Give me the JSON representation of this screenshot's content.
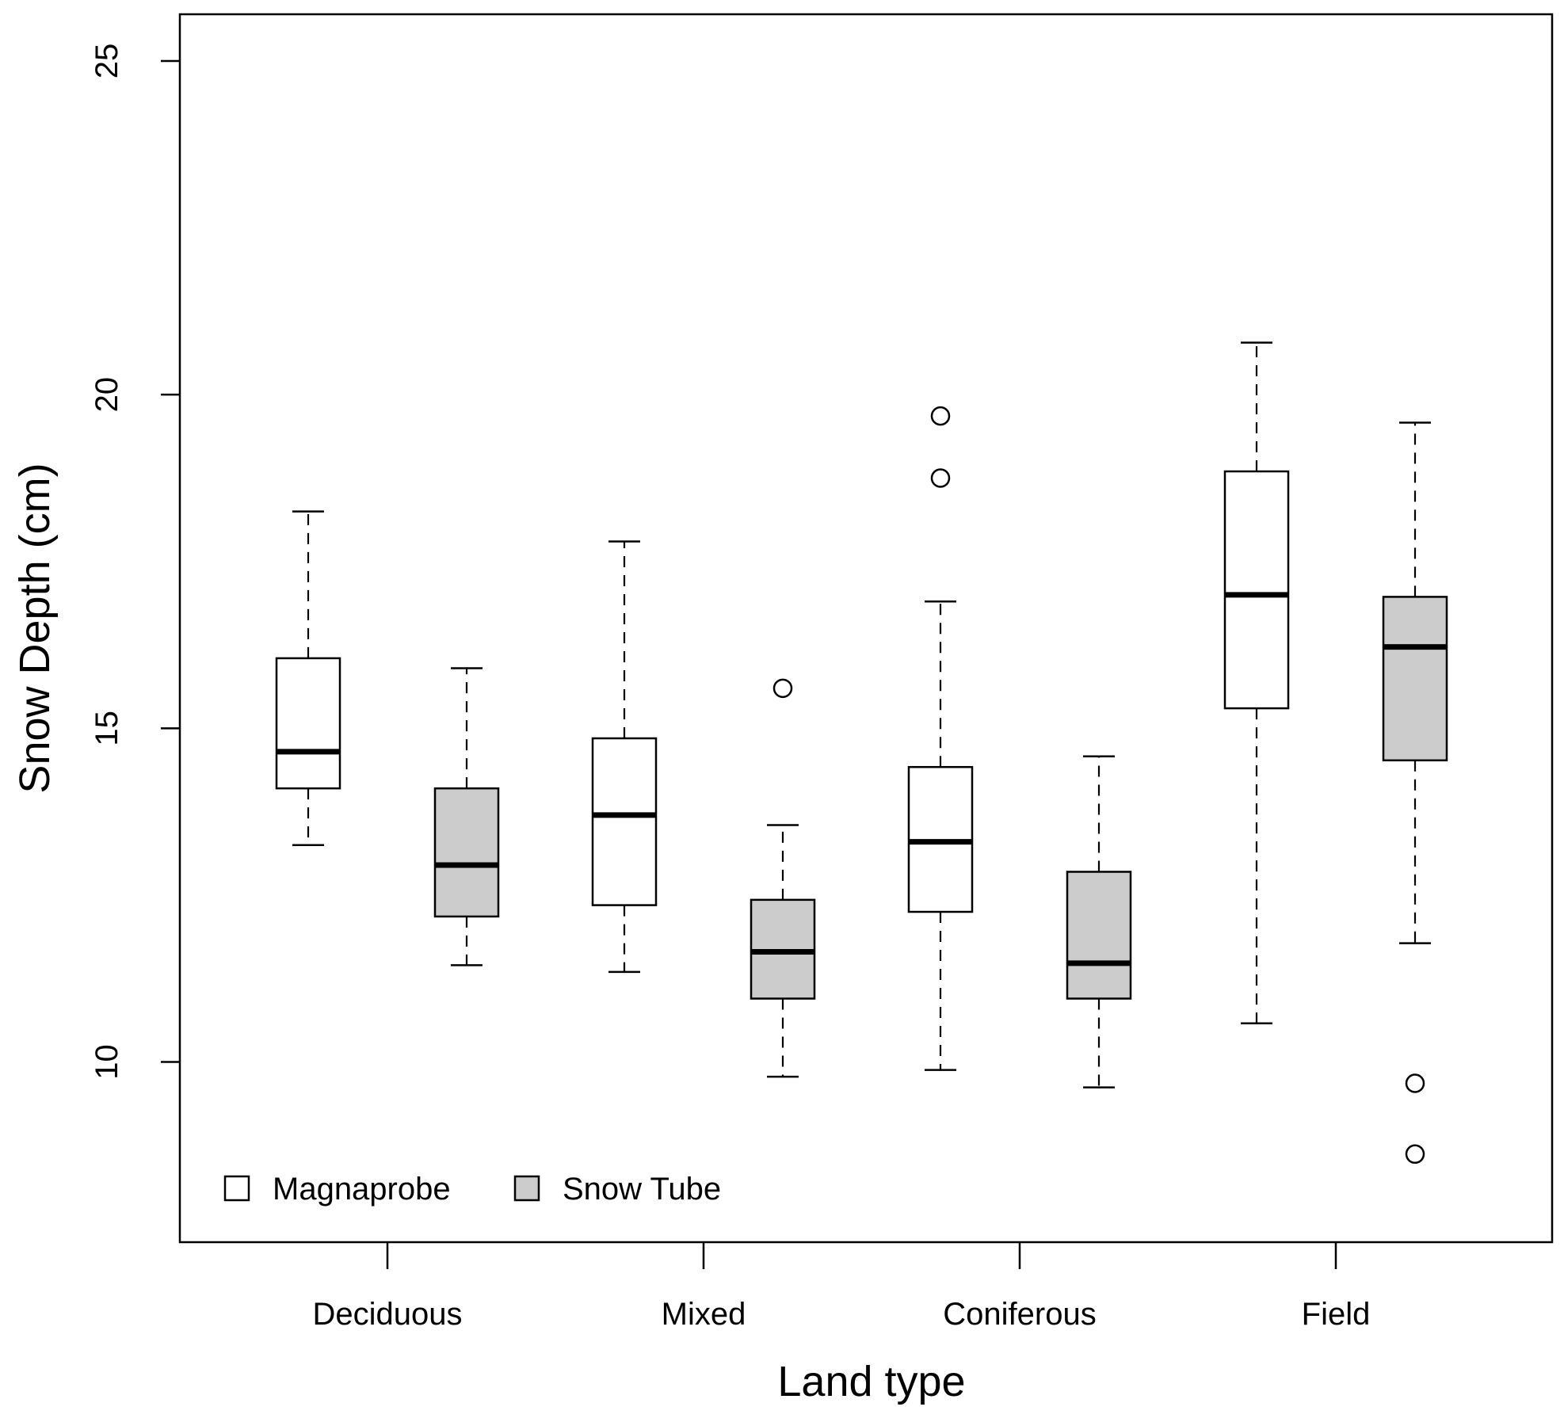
{
  "chart_data": {
    "type": "boxplot",
    "xlabel": "Land type",
    "ylabel": "Snow Depth (cm)",
    "ylim": [
      7.3,
      25.7
    ],
    "yticks": [
      10,
      15,
      20,
      25
    ],
    "grid": false,
    "legend_position": "bottom-left",
    "categories": [
      "Deciduous",
      "Mixed",
      "Coniferous",
      "Field"
    ],
    "series": [
      {
        "name": "Magnaprobe",
        "color": "#ffffff",
        "boxes": [
          {
            "whisker_low": 13.25,
            "q1": 14.1,
            "median": 14.65,
            "q3": 16.05,
            "whisker_high": 18.25,
            "outliers": []
          },
          {
            "whisker_low": 11.35,
            "q1": 12.35,
            "median": 13.7,
            "q3": 14.85,
            "whisker_high": 17.8,
            "outliers": []
          },
          {
            "whisker_low": 9.88,
            "q1": 12.25,
            "median": 13.3,
            "q3": 14.42,
            "whisker_high": 16.9,
            "outliers": [
              18.75,
              19.68
            ]
          },
          {
            "whisker_low": 10.58,
            "q1": 15.3,
            "median": 17.0,
            "q3": 18.85,
            "whisker_high": 20.78,
            "outliers": []
          }
        ]
      },
      {
        "name": "Snow Tube",
        "color": "#cccccc",
        "boxes": [
          {
            "whisker_low": 11.45,
            "q1": 12.18,
            "median": 12.95,
            "q3": 14.1,
            "whisker_high": 15.9,
            "outliers": []
          },
          {
            "whisker_low": 9.78,
            "q1": 10.95,
            "median": 11.65,
            "q3": 12.43,
            "whisker_high": 13.55,
            "outliers": [
              15.6
            ]
          },
          {
            "whisker_low": 9.62,
            "q1": 10.95,
            "median": 11.48,
            "q3": 12.85,
            "whisker_high": 14.58,
            "outliers": []
          },
          {
            "whisker_low": 11.78,
            "q1": 14.52,
            "median": 16.22,
            "q3": 16.97,
            "whisker_high": 19.58,
            "outliers": [
              8.62,
              9.68
            ]
          }
        ]
      }
    ]
  }
}
